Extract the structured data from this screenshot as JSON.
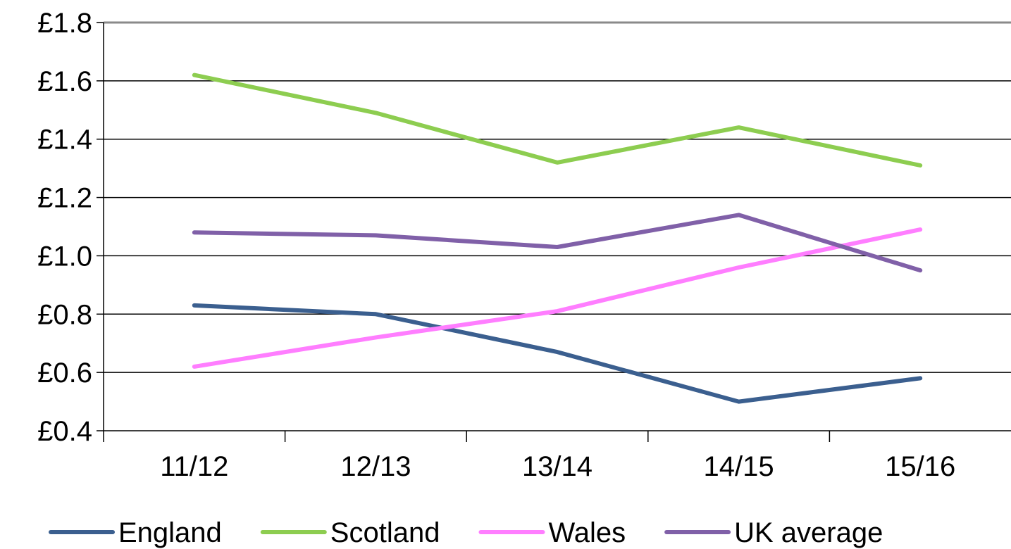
{
  "chart_data": {
    "type": "line",
    "categories": [
      "11/12",
      "12/13",
      "13/14",
      "14/15",
      "15/16"
    ],
    "y_ticks": [
      "£0.4",
      "£0.6",
      "£0.8",
      "£1.0",
      "£1.2",
      "£1.4",
      "£1.6",
      "£1.8"
    ],
    "ylim": [
      0.4,
      1.8
    ],
    "grid": true,
    "legend_position": "bottom",
    "series": [
      {
        "name": "England",
        "color": "#3b5f8f",
        "values": [
          0.83,
          0.8,
          0.67,
          0.5,
          0.58
        ]
      },
      {
        "name": "Scotland",
        "color": "#8dcd50",
        "values": [
          1.62,
          1.49,
          1.32,
          1.44,
          1.31
        ]
      },
      {
        "name": "Wales",
        "color": "#ff7eff",
        "values": [
          0.62,
          0.72,
          0.81,
          0.96,
          1.09
        ]
      },
      {
        "name": "UK average",
        "color": "#8060a8",
        "values": [
          1.08,
          1.07,
          1.03,
          1.14,
          0.95
        ]
      }
    ]
  }
}
